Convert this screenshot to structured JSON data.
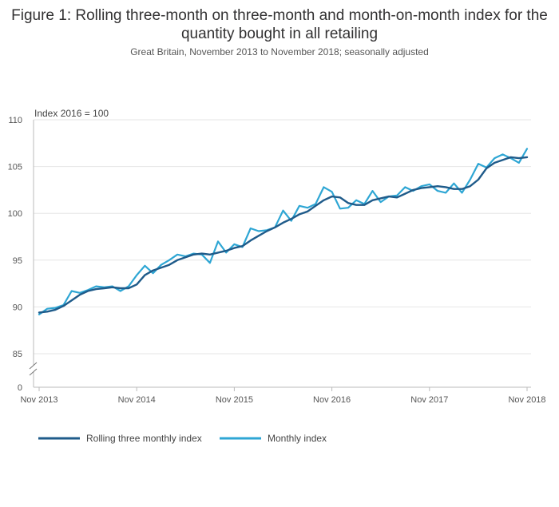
{
  "chart_data": {
    "type": "line",
    "title": "Figure 1: Rolling three-month on three-month and month-on-month index for the quantity bought in all retailing",
    "subtitle": "Great Britain, November 2013 to November 2018; seasonally adjusted",
    "ylabel": "Index 2016 = 100",
    "xlabel": "",
    "y_ticks": [
      "0",
      "85",
      "90",
      "95",
      "100",
      "105",
      "110"
    ],
    "x_ticks": [
      "Nov 2013",
      "Nov 2014",
      "Nov 2015",
      "Nov 2016",
      "Nov 2017",
      "Nov 2018"
    ],
    "axis_break": true,
    "ylim": [
      85,
      110
    ],
    "grid": true,
    "legend_position": "bottom-left",
    "colors": {
      "rolling": "#1f5b8a",
      "monthly": "#2ea6d4",
      "grid": "#e6e6e6",
      "axis": "#bbbbbb"
    },
    "series": [
      {
        "name": "Rolling three monthly index",
        "values": [
          89.4,
          89.5,
          89.7,
          90.1,
          90.7,
          91.3,
          91.7,
          91.9,
          92.0,
          92.1,
          92.0,
          92.0,
          92.4,
          93.4,
          93.9,
          94.2,
          94.5,
          95.0,
          95.3,
          95.6,
          95.7,
          95.6,
          95.8,
          96.0,
          96.3,
          96.5,
          97.1,
          97.6,
          98.1,
          98.5,
          99.0,
          99.4,
          99.9,
          100.2,
          100.8,
          101.4,
          101.8,
          101.7,
          101.1,
          100.9,
          100.9,
          101.4,
          101.6,
          101.8,
          101.7,
          102.1,
          102.5,
          102.7,
          102.8,
          102.9,
          102.8,
          102.6,
          102.6,
          102.9,
          103.6,
          104.8,
          105.4,
          105.7,
          106.0,
          105.9,
          106.0
        ]
      },
      {
        "name": "Monthly index",
        "values": [
          89.2,
          89.8,
          89.9,
          90.2,
          91.7,
          91.5,
          91.8,
          92.2,
          92.1,
          92.2,
          91.7,
          92.2,
          93.4,
          94.4,
          93.6,
          94.5,
          95.0,
          95.6,
          95.4,
          95.7,
          95.6,
          94.7,
          97.0,
          95.8,
          96.7,
          96.4,
          98.4,
          98.1,
          98.2,
          98.5,
          100.3,
          99.2,
          100.8,
          100.6,
          101.0,
          102.8,
          102.3,
          100.5,
          100.6,
          101.4,
          101.0,
          102.4,
          101.2,
          101.8,
          101.9,
          102.8,
          102.4,
          102.9,
          103.1,
          102.4,
          102.2,
          103.2,
          102.2,
          103.6,
          105.3,
          104.9,
          105.9,
          106.3,
          105.9,
          105.4,
          106.9
        ]
      }
    ]
  }
}
